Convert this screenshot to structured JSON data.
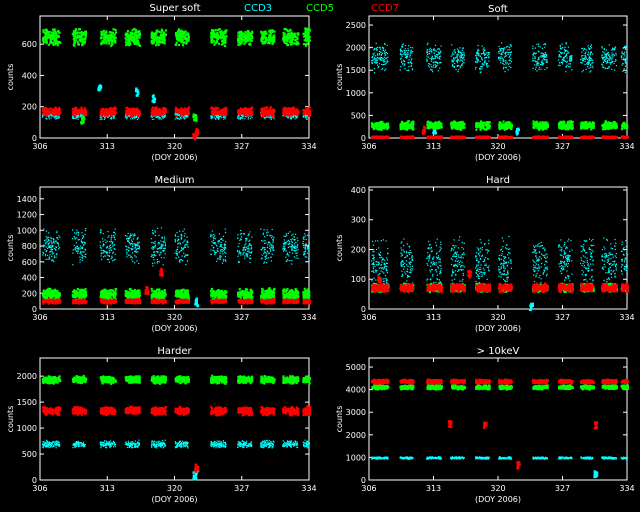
{
  "figure": {
    "header": [
      {
        "text": "Super soft",
        "color": "#ffffff"
      },
      {
        "text": "CCD3",
        "color": "#00ffff"
      },
      {
        "text": "CCD5",
        "color": "#00ff00"
      },
      {
        "text": "CCD7",
        "color": "#ff0000"
      }
    ]
  },
  "chart_data": [
    {
      "type": "scatter",
      "title": "Super soft",
      "xlabel": "(DOY 2006)",
      "ylabel": "counts",
      "xlim": [
        306,
        334
      ],
      "ylim": [
        0,
        780
      ],
      "xticks": [
        306,
        313,
        320,
        327,
        334
      ],
      "yticks": [
        0,
        200,
        400,
        600
      ],
      "series": [
        {
          "name": "CCD3",
          "color": "#00ffff",
          "level": 150,
          "spread": 30,
          "bursts": [
            [
              312.1,
              320
            ],
            [
              316.0,
              300
            ],
            [
              317.7,
              260
            ]
          ]
        },
        {
          "name": "CCD5",
          "color": "#00ff00",
          "level": 650,
          "spread": 60,
          "bursts": [
            [
              310.3,
              120
            ],
            [
              322.0,
              140
            ]
          ]
        },
        {
          "name": "CCD7",
          "color": "#ff0000",
          "level": 175,
          "spread": 30,
          "bursts": [
            [
              322.0,
              10
            ],
            [
              322.2,
              40
            ]
          ]
        }
      ]
    },
    {
      "type": "scatter",
      "title": "Soft",
      "xlabel": "(DOY 2006)",
      "ylabel": "counts",
      "xlim": [
        306,
        334
      ],
      "ylim": [
        0,
        2700
      ],
      "xticks": [
        306,
        313,
        320,
        327,
        334
      ],
      "yticks": [
        0,
        500,
        1000,
        1500,
        2000,
        2500
      ],
      "series": [
        {
          "name": "CCD3",
          "color": "#00ffff",
          "level": 1800,
          "spread": 350,
          "bursts": [
            [
              313.0,
              200
            ],
            [
              322.0,
              150
            ]
          ]
        },
        {
          "name": "CCD5",
          "color": "#00ff00",
          "level": 300,
          "spread": 100,
          "bursts": []
        },
        {
          "name": "CCD7",
          "color": "#ff0000",
          "level": 40,
          "spread": 20,
          "bursts": [
            [
              311.8,
              200
            ]
          ]
        }
      ]
    },
    {
      "type": "scatter",
      "title": "Medium",
      "xlabel": "(DOY 2006)",
      "ylabel": "counts",
      "xlim": [
        306,
        334
      ],
      "ylim": [
        0,
        1550
      ],
      "xticks": [
        306,
        313,
        320,
        327,
        334
      ],
      "yticks": [
        0,
        200,
        400,
        600,
        800,
        1000,
        1200,
        1400
      ],
      "series": [
        {
          "name": "CCD3",
          "color": "#00ffff",
          "level": 800,
          "spread": 250,
          "bursts": [
            [
              322.2,
              100
            ]
          ]
        },
        {
          "name": "CCD5",
          "color": "#00ff00",
          "level": 200,
          "spread": 80,
          "bursts": []
        },
        {
          "name": "CCD7",
          "color": "#ff0000",
          "level": 110,
          "spread": 30,
          "bursts": [
            [
              317.0,
              250
            ],
            [
              318.5,
              480
            ]
          ]
        }
      ]
    },
    {
      "type": "scatter",
      "title": "Hard",
      "xlabel": "(DOY 2006)",
      "ylabel": "counts",
      "xlim": [
        306,
        334
      ],
      "ylim": [
        0,
        410
      ],
      "xticks": [
        306,
        313,
        320,
        327,
        334
      ],
      "yticks": [
        0,
        100,
        200,
        300,
        400
      ],
      "series": [
        {
          "name": "CCD3",
          "color": "#00ffff",
          "level": 160,
          "spread": 90,
          "bursts": [
            [
              323.5,
              10
            ]
          ]
        },
        {
          "name": "CCD5",
          "color": "#00ff00",
          "level": 75,
          "spread": 15,
          "bursts": []
        },
        {
          "name": "CCD7",
          "color": "#ff0000",
          "level": 75,
          "spread": 15,
          "bursts": [
            [
              316.8,
              120
            ],
            [
              307.0,
              105
            ]
          ]
        }
      ]
    },
    {
      "type": "scatter",
      "title": "Harder",
      "xlabel": "(DOY 2006)",
      "ylabel": "counts",
      "xlim": [
        306,
        334
      ],
      "ylim": [
        0,
        2350
      ],
      "xticks": [
        306,
        313,
        320,
        327,
        334
      ],
      "yticks": [
        0,
        500,
        1000,
        1500,
        2000
      ],
      "series": [
        {
          "name": "CCD3",
          "color": "#00ffff",
          "level": 700,
          "spread": 80,
          "bursts": [
            [
              322.0,
              100
            ],
            [
              322.2,
              200
            ]
          ]
        },
        {
          "name": "CCD5",
          "color": "#00ff00",
          "level": 1950,
          "spread": 80,
          "bursts": []
        },
        {
          "name": "CCD7",
          "color": "#ff0000",
          "level": 1350,
          "spread": 90,
          "bursts": [
            [
              322.2,
              250
            ]
          ]
        }
      ]
    },
    {
      "type": "scatter",
      "title": "> 10keV",
      "xlabel": "(DOY 2006)",
      "ylabel": "counts",
      "xlim": [
        306,
        334
      ],
      "ylim": [
        0,
        5400
      ],
      "xticks": [
        306,
        313,
        320,
        327,
        334
      ],
      "yticks": [
        0,
        1000,
        2000,
        3000,
        4000,
        5000
      ],
      "series": [
        {
          "name": "CCD3",
          "color": "#00ffff",
          "level": 1000,
          "spread": 60,
          "bursts": [
            [
              330.5,
              300
            ]
          ]
        },
        {
          "name": "CCD5",
          "color": "#00ff00",
          "level": 4150,
          "spread": 100,
          "bursts": []
        },
        {
          "name": "CCD7",
          "color": "#ff0000",
          "level": 4400,
          "spread": 100,
          "bursts": [
            [
              314.7,
              2500
            ],
            [
              318.5,
              2500
            ],
            [
              322.1,
              700
            ],
            [
              330.5,
              2500
            ]
          ]
        }
      ]
    }
  ],
  "observing_windows": [
    [
      306.2,
      308.0
    ],
    [
      309.3,
      310.7
    ],
    [
      312.2,
      313.8
    ],
    [
      314.8,
      316.3
    ],
    [
      317.5,
      319.0
    ],
    [
      320.0,
      321.4
    ],
    [
      323.7,
      325.3
    ],
    [
      326.5,
      328.0
    ],
    [
      328.9,
      330.3
    ],
    [
      331.2,
      332.8
    ],
    [
      333.3,
      334.0
    ]
  ]
}
